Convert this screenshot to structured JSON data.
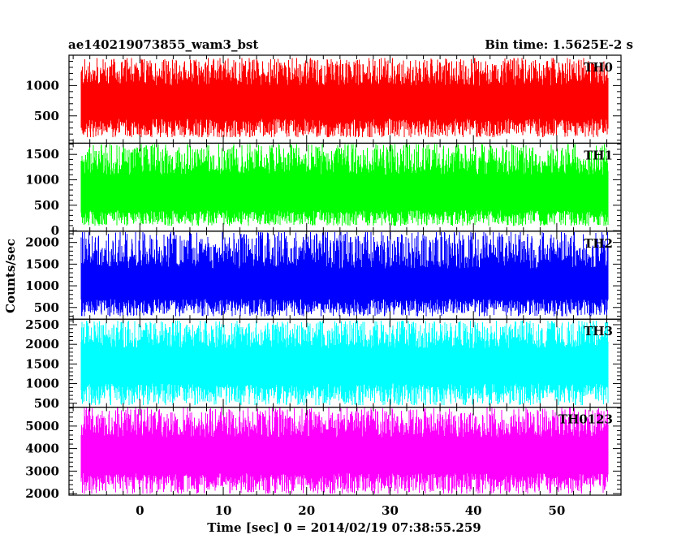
{
  "header": {
    "title": "ae140219073855_wam3_bst",
    "bin_time": "Bin time: 1.5625E-2 s"
  },
  "chart_data": [
    {
      "type": "line",
      "panel": "TH0",
      "label": "TH0",
      "color": "#ff0000",
      "x_range": [
        -7.0,
        56.1
      ],
      "ylim": [
        50,
        1500
      ],
      "yticks": [
        500,
        1000
      ],
      "envelope": {
        "low_min": 150,
        "low_max": 450,
        "high_min": 1000,
        "high_max": 1450
      }
    },
    {
      "type": "line",
      "panel": "TH1",
      "label": "TH1",
      "color": "#00ff00",
      "x_range": [
        -7.0,
        56.1
      ],
      "ylim": [
        -10,
        1720
      ],
      "yticks": [
        0,
        500,
        1000,
        1500
      ],
      "envelope": {
        "low_min": 100,
        "low_max": 400,
        "high_min": 1100,
        "high_max": 1700
      }
    },
    {
      "type": "line",
      "panel": "TH2",
      "label": "TH2",
      "color": "#0000ff",
      "x_range": [
        -7.0,
        56.1
      ],
      "ylim": [
        230,
        2260
      ],
      "yticks": [
        500,
        1000,
        1500,
        2000
      ],
      "envelope": {
        "low_min": 300,
        "low_max": 700,
        "high_min": 1400,
        "high_max": 2250
      }
    },
    {
      "type": "line",
      "panel": "TH3",
      "label": "TH3",
      "color": "#00ffff",
      "x_range": [
        -7.0,
        56.1
      ],
      "ylim": [
        400,
        2640
      ],
      "yticks": [
        500,
        1000,
        1500,
        2000,
        2500
      ],
      "envelope": {
        "low_min": 450,
        "low_max": 1000,
        "high_min": 1900,
        "high_max": 2600
      }
    },
    {
      "type": "line",
      "panel": "TH0123",
      "label": "TH0123",
      "color": "#ff00ff",
      "x_range": [
        -7.0,
        56.1
      ],
      "ylim": [
        1930,
        5840
      ],
      "yticks": [
        2000,
        3000,
        4000,
        5000
      ],
      "envelope": {
        "low_min": 2000,
        "low_max": 2900,
        "high_min": 4500,
        "high_max": 5800
      }
    }
  ],
  "x_axis": {
    "xlim": [
      -8.5,
      57.7
    ],
    "ticks": [
      0,
      10,
      20,
      30,
      40,
      50
    ],
    "label": "Time [sec] 0 = 2014/02/19 07:38:55.259"
  },
  "y_axis": {
    "label": "Counts/sec"
  }
}
